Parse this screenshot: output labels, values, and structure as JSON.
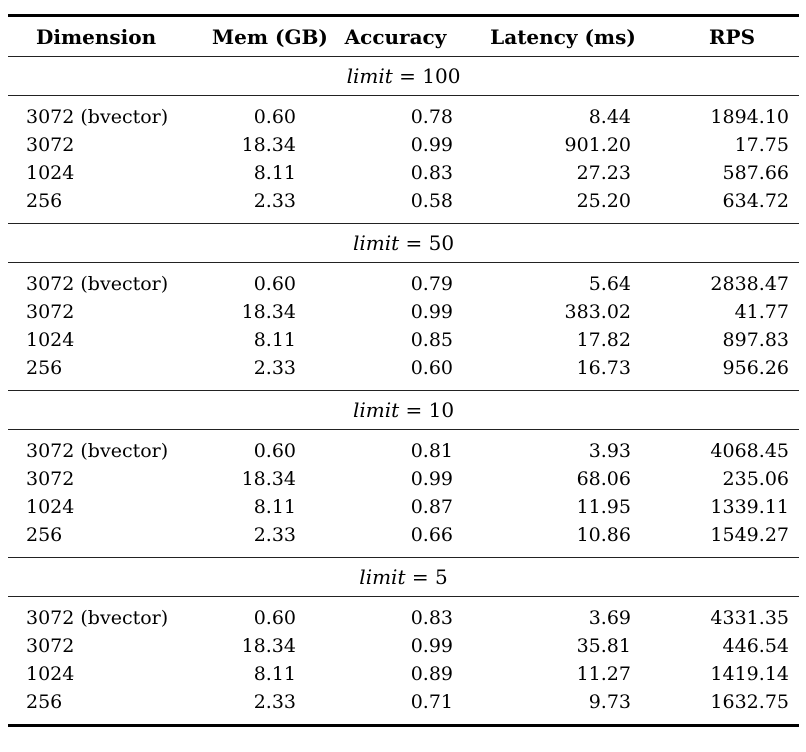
{
  "colors": {
    "background": "#ffffff",
    "text": "#000000",
    "rule_heavy": "#000000",
    "rule_light": "#222222"
  },
  "table": {
    "columns": [
      "Dimension",
      "Mem (GB)",
      "Accuracy",
      "Latency (ms)",
      "RPS"
    ],
    "sections": [
      {
        "header": {
          "variable": "limit",
          "operator": "=",
          "value": "100"
        },
        "rows": [
          [
            "3072 (bvector)",
            "0.60",
            "0.78",
            "8.44",
            "1894.10"
          ],
          [
            "3072",
            "18.34",
            "0.99",
            "901.20",
            "17.75"
          ],
          [
            "1024",
            "8.11",
            "0.83",
            "27.23",
            "587.66"
          ],
          [
            "256",
            "2.33",
            "0.58",
            "25.20",
            "634.72"
          ]
        ]
      },
      {
        "header": {
          "variable": "limit",
          "operator": "=",
          "value": "50"
        },
        "rows": [
          [
            "3072 (bvector)",
            "0.60",
            "0.79",
            "5.64",
            "2838.47"
          ],
          [
            "3072",
            "18.34",
            "0.99",
            "383.02",
            "41.77"
          ],
          [
            "1024",
            "8.11",
            "0.85",
            "17.82",
            "897.83"
          ],
          [
            "256",
            "2.33",
            "0.60",
            "16.73",
            "956.26"
          ]
        ]
      },
      {
        "header": {
          "variable": "limit",
          "operator": "=",
          "value": "10"
        },
        "rows": [
          [
            "3072 (bvector)",
            "0.60",
            "0.81",
            "3.93",
            "4068.45"
          ],
          [
            "3072",
            "18.34",
            "0.99",
            "68.06",
            "235.06"
          ],
          [
            "1024",
            "8.11",
            "0.87",
            "11.95",
            "1339.11"
          ],
          [
            "256",
            "2.33",
            "0.66",
            "10.86",
            "1549.27"
          ]
        ]
      },
      {
        "header": {
          "variable": "limit",
          "operator": "=",
          "value": "5"
        },
        "rows": [
          [
            "3072 (bvector)",
            "0.60",
            "0.83",
            "3.69",
            "4331.35"
          ],
          [
            "3072",
            "18.34",
            "0.99",
            "35.81",
            "446.54"
          ],
          [
            "1024",
            "8.11",
            "0.89",
            "11.27",
            "1419.14"
          ],
          [
            "256",
            "2.33",
            "0.71",
            "9.73",
            "1632.75"
          ]
        ]
      }
    ]
  }
}
